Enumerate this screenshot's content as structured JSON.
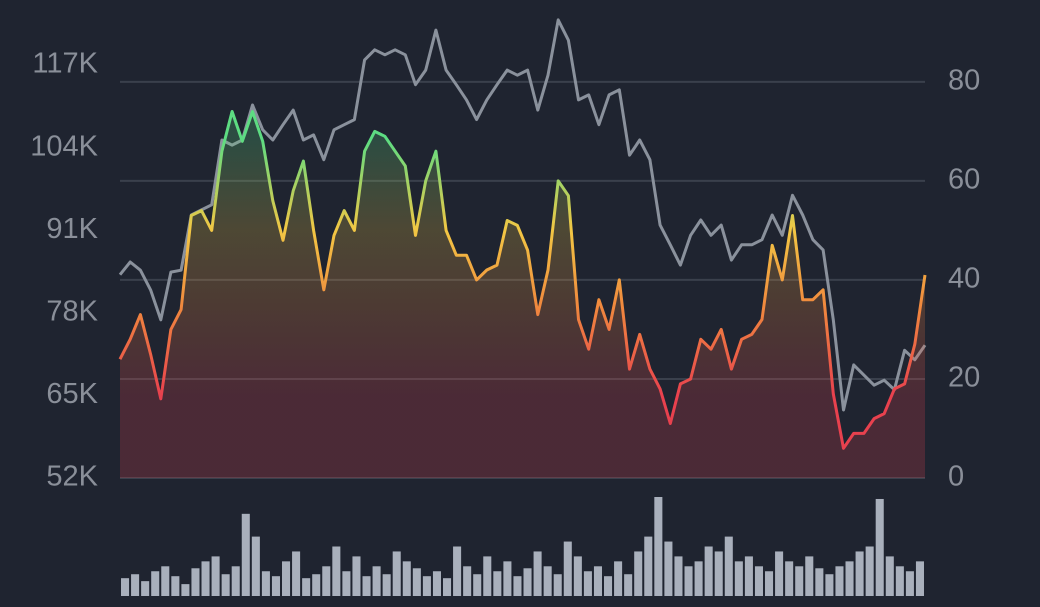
{
  "chart_data": [
    {
      "type": "line",
      "ylim": [
        52000,
        117000
      ],
      "yticks": [
        {
          "value": 117000,
          "label": "117K"
        },
        {
          "value": 104000,
          "label": "104K"
        },
        {
          "value": 91000,
          "label": "91K"
        },
        {
          "value": 78000,
          "label": "78K"
        },
        {
          "value": 65000,
          "label": "65K"
        },
        {
          "value": 52000,
          "label": "52K"
        }
      ],
      "y2lim": [
        0,
        83.4
      ],
      "y2ticks": [
        0,
        20,
        40,
        60,
        80
      ],
      "grid": true,
      "series": [
        {
          "color": "#8a919c",
          "values": [
            84000,
            86000,
            84700,
            81600,
            76900,
            84400,
            84700,
            93400,
            94200,
            95000,
            105200,
            104400,
            105200,
            110700,
            106800,
            105200,
            107600,
            109900,
            105200,
            106000,
            102100,
            106800,
            107600,
            108400,
            117800,
            119400,
            118600,
            119400,
            118600,
            113900,
            116200,
            122500,
            116200,
            113900,
            111500,
            108400,
            111500,
            113900,
            116200,
            115400,
            116200,
            109900,
            115400,
            124100,
            120900,
            111500,
            112300,
            107600,
            112300,
            113100,
            102800,
            105200,
            102100,
            91800,
            88700,
            85500,
            90200,
            92600,
            90200,
            91800,
            86300,
            88700,
            88700,
            89500,
            93400,
            90200,
            96500,
            93400,
            89500,
            87900,
            76900,
            62700,
            69800,
            68200,
            66600,
            67400,
            65900,
            72100,
            70600,
            72900
          ]
        },
        {
          "axis": "y2",
          "colors": [
            "#e8414e",
            "#f08a3e",
            "#f2c744",
            "#5ddc82"
          ],
          "values": [
            24,
            28,
            33,
            25,
            16,
            30,
            34,
            53,
            54,
            50,
            66,
            74,
            68,
            74,
            68,
            56,
            48,
            58,
            64,
            50,
            38,
            49,
            54,
            50,
            66,
            70,
            69,
            66,
            63,
            49,
            60,
            66,
            50,
            45,
            45,
            40,
            42,
            43,
            52,
            51,
            46,
            33,
            42,
            60,
            57,
            32,
            26,
            36,
            30,
            40,
            22,
            29,
            22,
            18,
            11,
            19,
            20,
            28,
            26,
            30,
            22,
            28,
            29,
            32,
            47,
            40,
            53,
            36,
            36,
            38,
            17,
            6,
            9,
            9,
            12,
            13,
            18,
            19,
            27,
            41
          ]
        }
      ]
    },
    {
      "type": "bar",
      "color": "#a9b0bc",
      "ylim": [
        0,
        100
      ],
      "values": [
        18,
        22,
        15,
        25,
        30,
        20,
        12,
        28,
        35,
        40,
        22,
        30,
        83,
        60,
        25,
        20,
        35,
        45,
        18,
        22,
        30,
        50,
        25,
        40,
        20,
        30,
        22,
        45,
        35,
        28,
        20,
        25,
        18,
        50,
        30,
        22,
        40,
        25,
        35,
        20,
        28,
        45,
        30,
        22,
        55,
        40,
        25,
        30,
        20,
        35,
        22,
        45,
        60,
        100,
        55,
        40,
        30,
        35,
        50,
        45,
        60,
        35,
        40,
        30,
        25,
        45,
        35,
        30,
        40,
        28,
        22,
        30,
        35,
        45,
        50,
        98,
        40,
        30,
        25,
        35
      ]
    }
  ]
}
